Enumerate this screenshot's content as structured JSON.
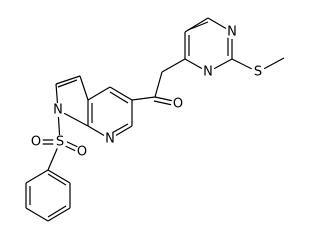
{
  "atoms": [
    {
      "label": "N"
    },
    {
      "label": "N"
    },
    {
      "label": "S"
    },
    {
      "label": "O"
    },
    {
      "label": "N"
    },
    {
      "label": "N"
    },
    {
      "label": "S"
    },
    {
      "label": "O"
    },
    {
      "label": "O"
    }
  ]
}
